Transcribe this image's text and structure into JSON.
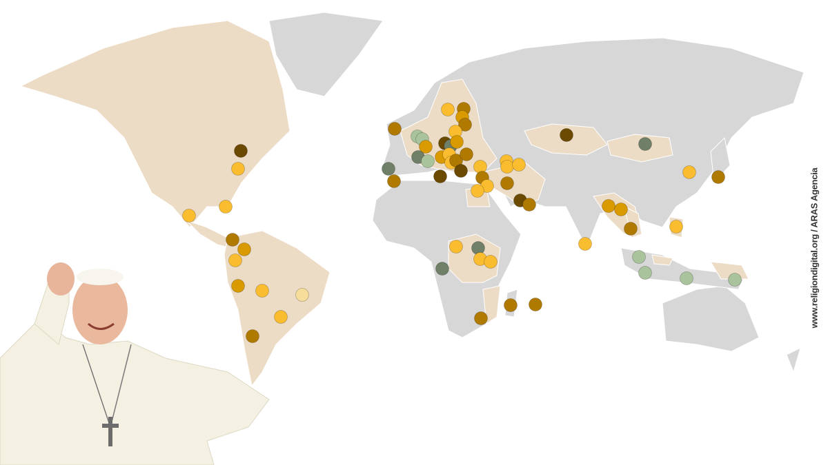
{
  "credit": "www.religiondigital.org / ARAS Agencia",
  "colors": {
    "land": "#d7d7d7",
    "visited_country": "#eddcc5",
    "border": "#ffffff",
    "dot_palette": [
      "#6b4a00",
      "#b07a00",
      "#d99a00",
      "#fbbd30",
      "#f6dd9a",
      "#6f7f68",
      "#a9c39c"
    ]
  },
  "figure": {
    "description_icon": "person-waving-image"
  }
}
